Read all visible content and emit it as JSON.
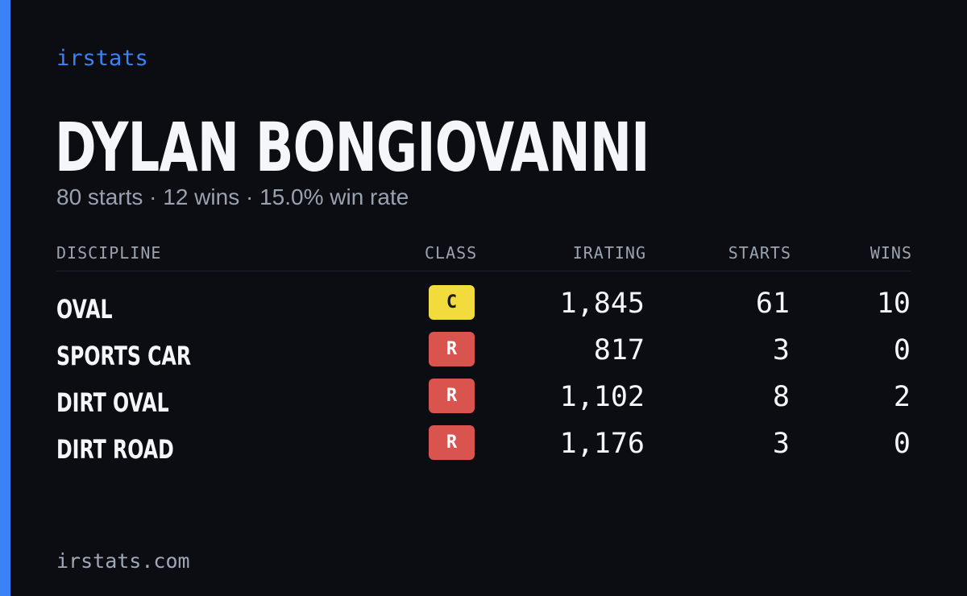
{
  "brand": "irstats",
  "player": {
    "name": "DYLAN BONGIOVANNI",
    "summary": "80 starts · 12 wins · 15.0% win rate"
  },
  "table": {
    "headers": {
      "discipline": "DISCIPLINE",
      "class": "CLASS",
      "irating": "IRATING",
      "starts": "STARTS",
      "wins": "WINS"
    },
    "rows": [
      {
        "discipline": "OVAL",
        "class": "C",
        "irating": "1,845",
        "starts": "61",
        "wins": "10"
      },
      {
        "discipline": "SPORTS CAR",
        "class": "R",
        "irating": "817",
        "starts": "3",
        "wins": "0"
      },
      {
        "discipline": "DIRT OVAL",
        "class": "R",
        "irating": "1,102",
        "starts": "8",
        "wins": "2"
      },
      {
        "discipline": "DIRT ROAD",
        "class": "R",
        "irating": "1,176",
        "starts": "3",
        "wins": "0"
      }
    ]
  },
  "footer": {
    "url": "irstats.com"
  },
  "colors": {
    "background": "#0b0d13",
    "accent": "#3b82f6",
    "class_c": "#f2db3d",
    "class_r": "#d9534f"
  }
}
